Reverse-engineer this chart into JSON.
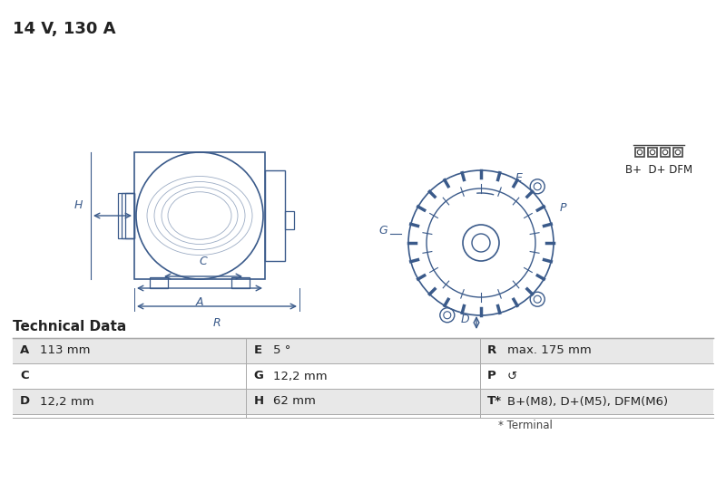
{
  "title": "14 V, 130 A",
  "title_fontsize": 13,
  "bg_color": "#ffffff",
  "diagram_color": "#3a5a8a",
  "table_header": "Technical Data",
  "table_rows": [
    [
      "A",
      "113 mm",
      "E",
      "5 °",
      "R",
      "max. 175 mm"
    ],
    [
      "C",
      "",
      "G",
      "12,2 mm",
      "P",
      "↺"
    ],
    [
      "D",
      "12,2 mm",
      "H",
      "62 mm",
      "T*",
      "B+(M8), D+(M5), DFM(M6)"
    ]
  ],
  "footnote": "* Terminal",
  "connector_label": "B+  D+ DFM",
  "col_bg_light": "#e8e8e8",
  "col_bg_white": "#ffffff",
  "line_color": "#3a5a8a"
}
